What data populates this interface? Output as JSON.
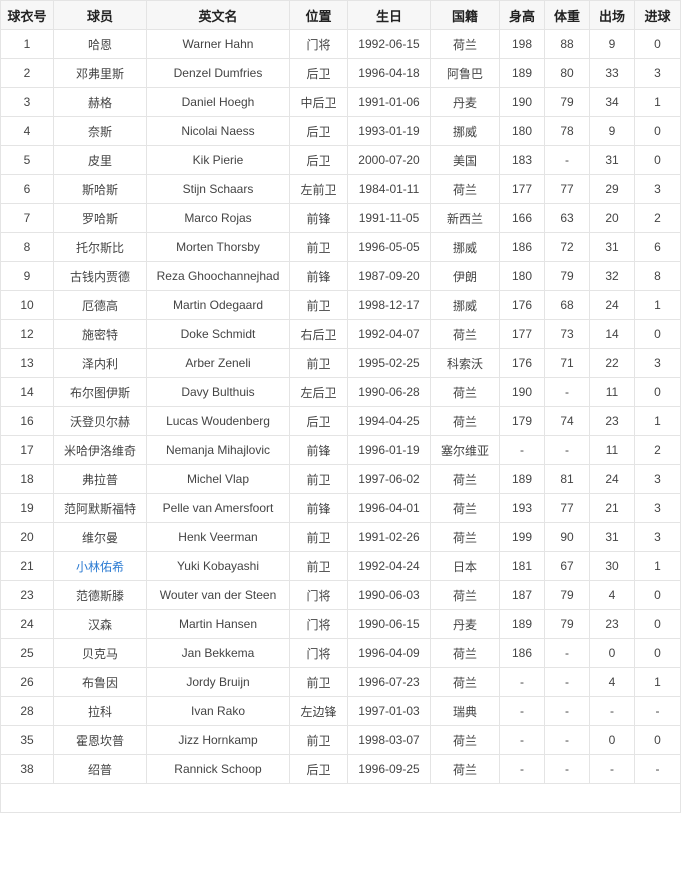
{
  "table": {
    "headers": [
      "球衣号",
      "球员",
      "英文名",
      "位置",
      "生日",
      "国籍",
      "身高",
      "体重",
      "出场",
      "进球"
    ],
    "rows": [
      {
        "cells": [
          "1",
          "哈恩",
          "Warner Hahn",
          "门将",
          "1992-06-15",
          "荷兰",
          "198",
          "88",
          "9",
          "0"
        ]
      },
      {
        "cells": [
          "2",
          "邓弗里斯",
          "Denzel Dumfries",
          "后卫",
          "1996-04-18",
          "阿鲁巴",
          "189",
          "80",
          "33",
          "3"
        ]
      },
      {
        "cells": [
          "3",
          "赫格",
          "Daniel Hoegh",
          "中后卫",
          "1991-01-06",
          "丹麦",
          "190",
          "79",
          "34",
          "1"
        ]
      },
      {
        "cells": [
          "4",
          "奈斯",
          "Nicolai Naess",
          "后卫",
          "1993-01-19",
          "挪威",
          "180",
          "78",
          "9",
          "0"
        ]
      },
      {
        "cells": [
          "5",
          "皮里",
          "Kik Pierie",
          "后卫",
          "2000-07-20",
          "美国",
          "183",
          "-",
          "31",
          "0"
        ]
      },
      {
        "cells": [
          "6",
          "斯哈斯",
          "Stijn Schaars",
          "左前卫",
          "1984-01-11",
          "荷兰",
          "177",
          "77",
          "29",
          "3"
        ]
      },
      {
        "cells": [
          "7",
          "罗哈斯",
          "Marco Rojas",
          "前锋",
          "1991-11-05",
          "新西兰",
          "166",
          "63",
          "20",
          "2"
        ]
      },
      {
        "cells": [
          "8",
          "托尔斯比",
          "Morten Thorsby",
          "前卫",
          "1996-05-05",
          "挪威",
          "186",
          "72",
          "31",
          "6"
        ]
      },
      {
        "cells": [
          "9",
          "古钱内贾德",
          "Reza Ghoochannejhad",
          "前锋",
          "1987-09-20",
          "伊朗",
          "180",
          "79",
          "32",
          "8"
        ]
      },
      {
        "cells": [
          "10",
          "厄德高",
          "Martin Odegaard",
          "前卫",
          "1998-12-17",
          "挪威",
          "176",
          "68",
          "24",
          "1"
        ]
      },
      {
        "cells": [
          "12",
          "施密特",
          "Doke Schmidt",
          "右后卫",
          "1992-04-07",
          "荷兰",
          "177",
          "73",
          "14",
          "0"
        ]
      },
      {
        "cells": [
          "13",
          "泽内利",
          "Arber Zeneli",
          "前卫",
          "1995-02-25",
          "科索沃",
          "176",
          "71",
          "22",
          "3"
        ]
      },
      {
        "cells": [
          "14",
          "布尔图伊斯",
          "Davy Bulthuis",
          "左后卫",
          "1990-06-28",
          "荷兰",
          "190",
          "-",
          "11",
          "0"
        ]
      },
      {
        "cells": [
          "16",
          "沃登贝尔赫",
          "Lucas Woudenberg",
          "后卫",
          "1994-04-25",
          "荷兰",
          "179",
          "74",
          "23",
          "1"
        ]
      },
      {
        "cells": [
          "17",
          "米哈伊洛维奇",
          "Nemanja Mihajlovic",
          "前锋",
          "1996-01-19",
          "塞尔维亚",
          "-",
          "-",
          "11",
          "2"
        ]
      },
      {
        "cells": [
          "18",
          "弗拉普",
          "Michel Vlap",
          "前卫",
          "1997-06-02",
          "荷兰",
          "189",
          "81",
          "24",
          "3"
        ]
      },
      {
        "cells": [
          "19",
          "范阿默斯福特",
          "Pelle van Amersfoort",
          "前锋",
          "1996-04-01",
          "荷兰",
          "193",
          "77",
          "21",
          "3"
        ]
      },
      {
        "cells": [
          "20",
          "维尔曼",
          "Henk Veerman",
          "前卫",
          "1991-02-26",
          "荷兰",
          "199",
          "90",
          "31",
          "3"
        ]
      },
      {
        "cells": [
          "21",
          "小林佑希",
          "Yuki Kobayashi",
          "前卫",
          "1992-04-24",
          "日本",
          "181",
          "67",
          "30",
          "1"
        ],
        "name_is_link": true
      },
      {
        "cells": [
          "23",
          "范德斯滕",
          "Wouter van der Steen",
          "门将",
          "1990-06-03",
          "荷兰",
          "187",
          "79",
          "4",
          "0"
        ]
      },
      {
        "cells": [
          "24",
          "汉森",
          "Martin Hansen",
          "门将",
          "1990-06-15",
          "丹麦",
          "189",
          "79",
          "23",
          "0"
        ]
      },
      {
        "cells": [
          "25",
          "贝克马",
          "Jan Bekkema",
          "门将",
          "1996-04-09",
          "荷兰",
          "186",
          "-",
          "0",
          "0"
        ]
      },
      {
        "cells": [
          "26",
          "布鲁因",
          "Jordy Bruijn",
          "前卫",
          "1996-07-23",
          "荷兰",
          "-",
          "-",
          "4",
          "1"
        ]
      },
      {
        "cells": [
          "28",
          "拉科",
          "Ivan Rako",
          "左边锋",
          "1997-01-03",
          "瑞典",
          "-",
          "-",
          "-",
          "-"
        ]
      },
      {
        "cells": [
          "35",
          "霍恩坎普",
          "Jizz Hornkamp",
          "前卫",
          "1998-03-07",
          "荷兰",
          "-",
          "-",
          "0",
          "0"
        ]
      },
      {
        "cells": [
          "38",
          "绍普",
          "Rannick Schoop",
          "后卫",
          "1996-09-25",
          "荷兰",
          "-",
          "-",
          "-",
          "-"
        ]
      }
    ]
  },
  "colors": {
    "link": "#2a7ad2",
    "header_bg": "#f7f7f7",
    "border": "#e4e4e4"
  }
}
